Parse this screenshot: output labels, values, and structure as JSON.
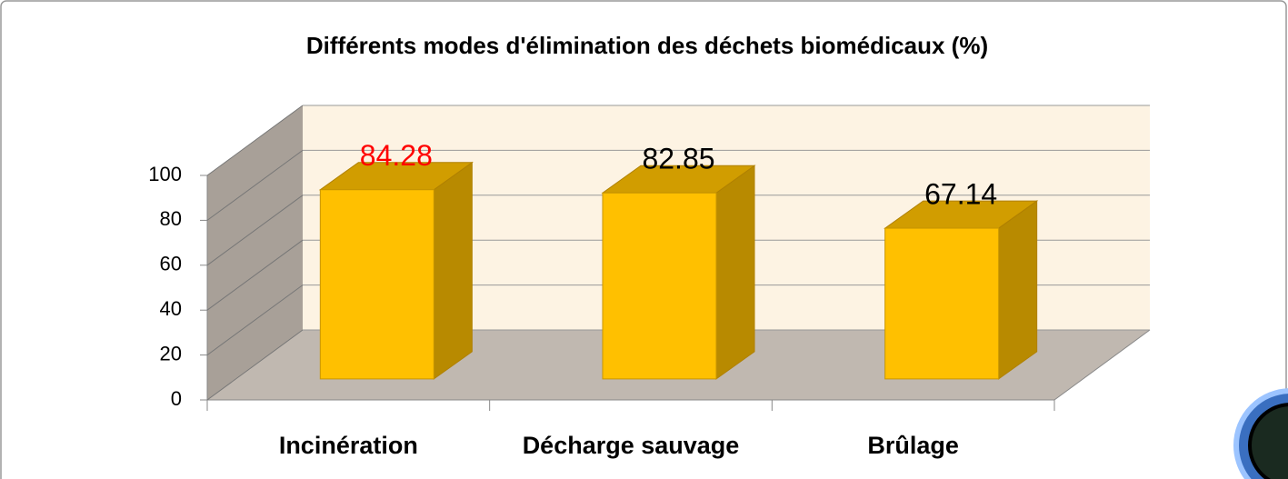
{
  "chart_data": {
    "type": "bar3d",
    "title": "Différents modes d'élimination des déchets biomédicaux (%)",
    "categories": [
      "Incinération",
      "Décharge sauvage",
      "Brûlage"
    ],
    "values": [
      84.28,
      82.85,
      67.14
    ],
    "color": "#ffc000",
    "value_label_colors": [
      "#ff0000",
      "#000000",
      "#000000"
    ],
    "ylim": [
      0,
      100
    ],
    "yticks": [
      0,
      20,
      40,
      60,
      80,
      100
    ],
    "grid": true
  }
}
